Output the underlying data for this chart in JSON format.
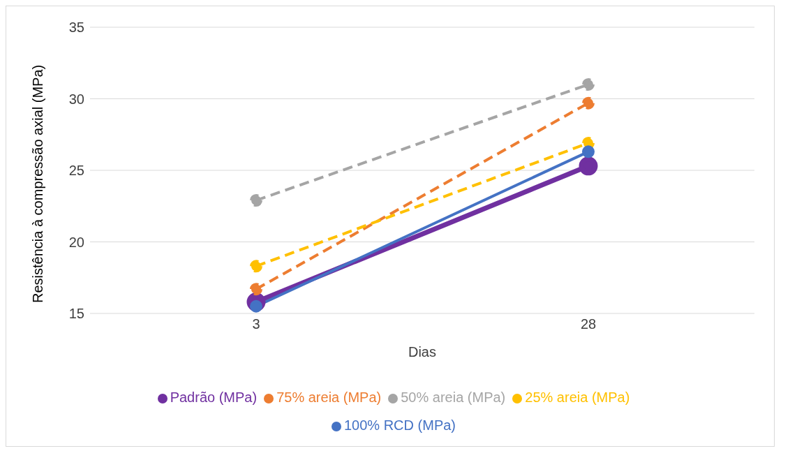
{
  "chart_data": {
    "type": "line",
    "xlabel": "Dias",
    "ylabel": "Resistência à compressão axial  (MPa)",
    "categories": [
      "3",
      "28"
    ],
    "series": [
      {
        "name": "Padrão (MPa)",
        "color": "#7030a0",
        "values": [
          15.8,
          25.3
        ],
        "line_style": "solid"
      },
      {
        "name": "75% areia (MPa)",
        "color": "#ed7d31",
        "values": [
          16.7,
          29.7
        ],
        "line_style": "dashed"
      },
      {
        "name": "50% areia (MPa)",
        "color": "#a5a5a5",
        "values": [
          22.9,
          31.0
        ],
        "line_style": "dashed"
      },
      {
        "name": "25% areia (MPa)",
        "color": "#ffc000",
        "values": [
          18.3,
          26.9
        ],
        "line_style": "dashed"
      },
      {
        "name": "100% RCD (MPa)",
        "color": "#4472c4",
        "values": [
          15.5,
          26.3
        ],
        "line_style": "solid"
      }
    ],
    "ylim": [
      15,
      35
    ],
    "yticks": [
      15,
      20,
      25,
      30,
      35
    ],
    "grid": "y",
    "legend": "bottom",
    "marker": "circle"
  }
}
